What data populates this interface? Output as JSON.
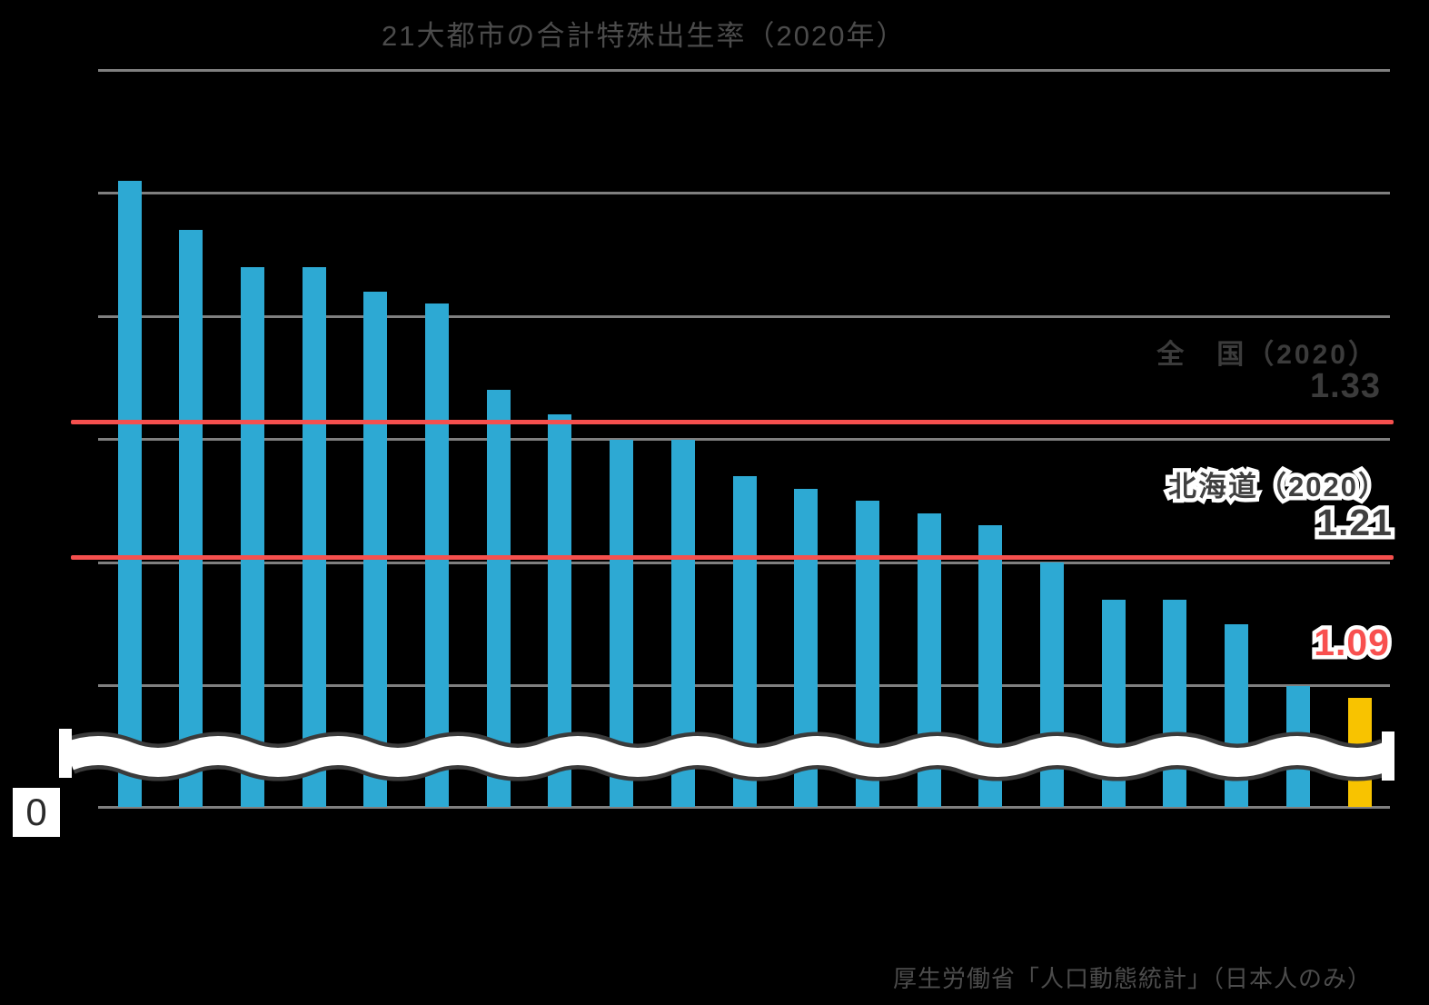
{
  "title": "21大都市の合計特殊出生率（2020年）",
  "source_note": "厚生労働省「人口動態統計」（日本人のみ）",
  "y_axis": {
    "zero_label": "0",
    "break_shown": true
  },
  "reference_lines": [
    {
      "label": "全　国（2020）",
      "value_label": "1.33",
      "value": 1.33,
      "line_color": "#f5504e",
      "label_color": "#3b3b3b",
      "outlined": false
    },
    {
      "label": "北海道（2020）",
      "value_label": "1.21",
      "value": 1.21,
      "line_color": "#f5504e",
      "label_color": "#404040",
      "outlined": true
    }
  ],
  "annotation": {
    "value_label": "1.09",
    "value": 1.09,
    "color": "#f8504f",
    "applies_to_bar": 21
  },
  "colors": {
    "background": "#000000",
    "bar": "#2da9d3",
    "bar_highlight": "#f8c300",
    "gridline": "#7f7f7f",
    "reference_line": "#f5504e",
    "wave_outline": "#3b3b3b",
    "title_text": "#4b4b4b",
    "outline": "#ffffff"
  },
  "chart_data": {
    "type": "bar",
    "title": "21大都市の合計特殊出生率（2020年）",
    "categories_shown": false,
    "values": [
      1.51,
      1.47,
      1.44,
      1.44,
      1.42,
      1.41,
      1.34,
      1.32,
      1.3,
      1.3,
      1.27,
      1.26,
      1.25,
      1.24,
      1.23,
      1.2,
      1.17,
      1.17,
      1.15,
      1.1,
      1.09
    ],
    "highlight_index": 20,
    "highlight_color": "#f8c300",
    "bar_color": "#2da9d3",
    "xlabel": "",
    "ylabel": "",
    "ylim_visible": [
      1.0,
      1.65
    ],
    "y_break_to_zero": true,
    "gridline_values": [
      1.6,
      1.5,
      1.4,
      1.3,
      1.2,
      1.1,
      0
    ],
    "grid": true,
    "legend_position": "none",
    "reference_lines": [
      {
        "name": "全　国（2020）",
        "value": 1.33
      },
      {
        "name": "北海道（2020）",
        "value": 1.21
      }
    ],
    "annotations": [
      {
        "text": "1.09",
        "value": 1.09,
        "bar_index": 21
      }
    ]
  }
}
